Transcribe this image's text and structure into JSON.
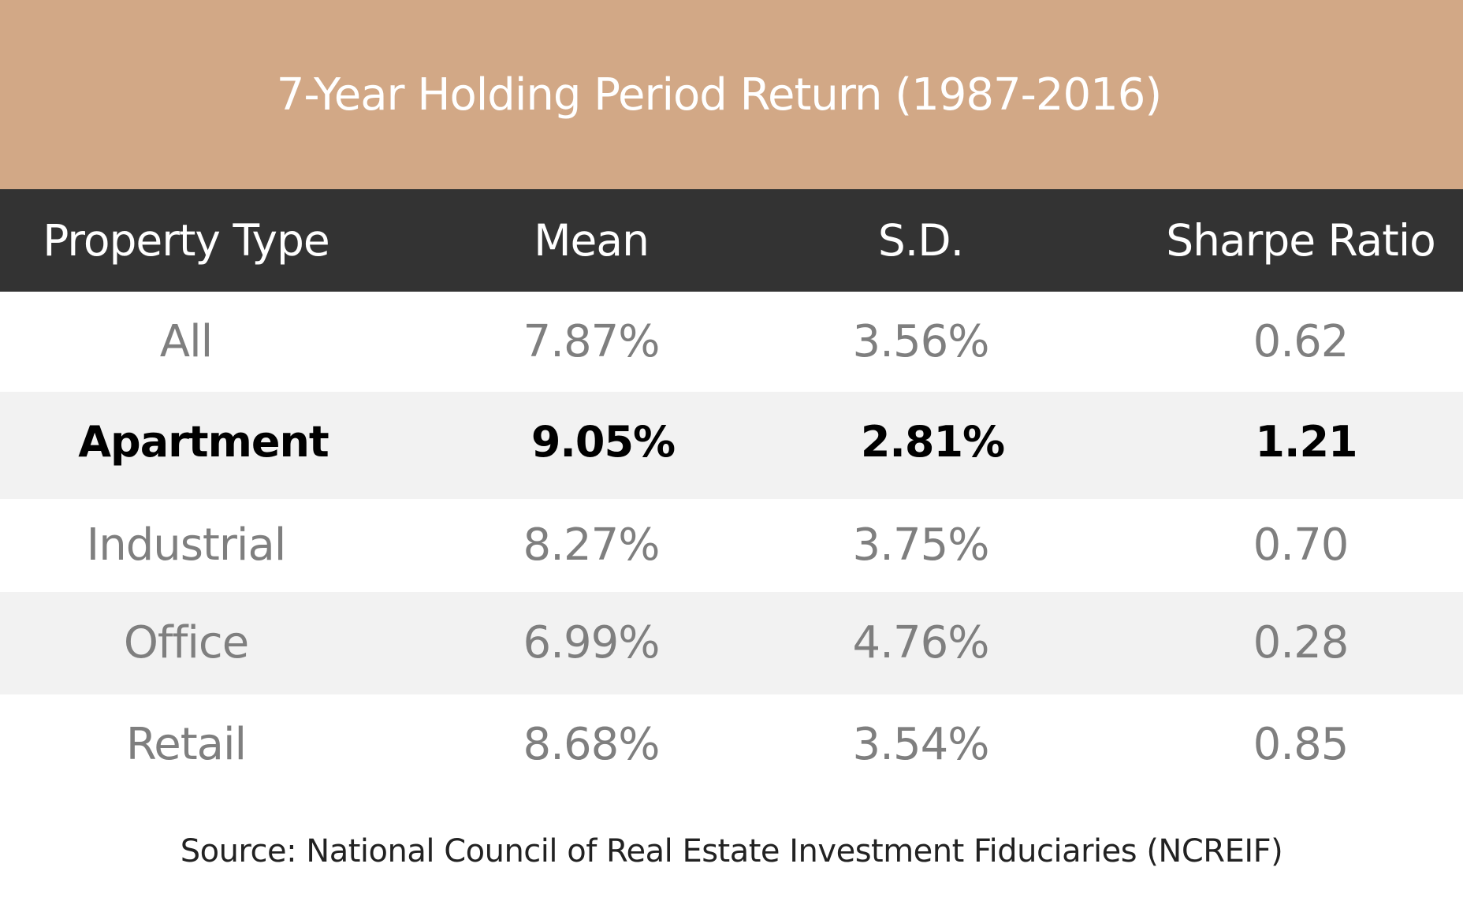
{
  "chart_data": {
    "type": "table",
    "title": "7-Year Holding Period Return (1987-2016)",
    "columns": [
      "Property Type",
      "Mean",
      "S.D.",
      "Sharpe Ratio"
    ],
    "rows": [
      {
        "type": "All",
        "mean": "7.87%",
        "sd": "3.56%",
        "sharpe": "0.62",
        "highlighted": false
      },
      {
        "type": "Apartment",
        "mean": "9.05%",
        "sd": "2.81%",
        "sharpe": "1.21",
        "highlighted": true
      },
      {
        "type": "Industrial",
        "mean": "8.27%",
        "sd": "3.75%",
        "sharpe": "0.70",
        "highlighted": false
      },
      {
        "type": "Office",
        "mean": "6.99%",
        "sd": "4.76%",
        "sharpe": "0.28",
        "highlighted": false
      },
      {
        "type": "Retail",
        "mean": "8.68%",
        "sd": "3.54%",
        "sharpe": "0.85",
        "highlighted": false
      }
    ],
    "source": "Source: National Council of Real Estate Investment Fiduciaries (NCREIF)"
  },
  "colors": {
    "title_band": "#d2a886",
    "header_band": "#333333",
    "shaded_row": "#f2f2f2",
    "value_text": "#7f7f7f",
    "highlight_text": "#000000"
  }
}
